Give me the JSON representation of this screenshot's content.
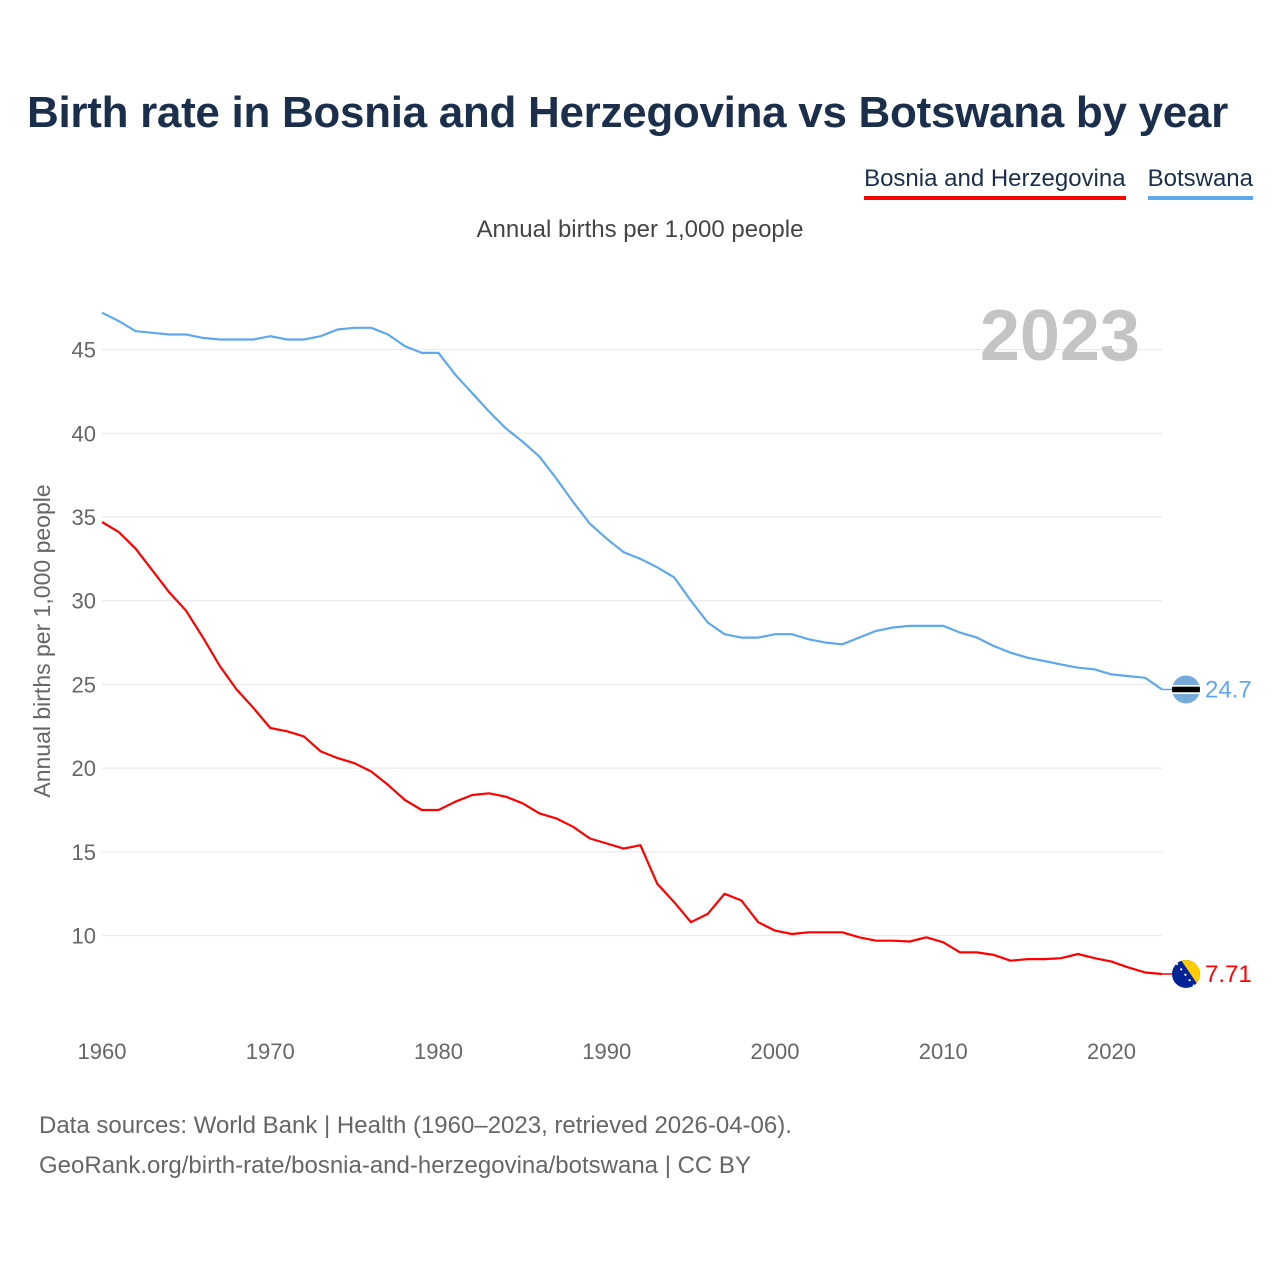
{
  "title": "Birth rate in Bosnia and Herzegovina vs Botswana by year",
  "subtitle": "Annual births per 1,000 people",
  "legend": [
    {
      "label": "Bosnia and Herzegovina",
      "color": "#ff0000"
    },
    {
      "label": "Botswana",
      "color": "#5ea8ec"
    }
  ],
  "year_label": "2023",
  "source": {
    "line1": "Data sources: World Bank | Health (1960–2023, retrieved 2026-04-06).",
    "line2": "GeoRank.org/birth-rate/bosnia-and-herzegovina/botswana | CC BY"
  },
  "chart_data": {
    "type": "line",
    "title": "Birth rate in Bosnia and Herzegovina vs Botswana by year",
    "xlabel": "",
    "ylabel": "Annual births per 1,000 people",
    "xlim": [
      1960,
      2023
    ],
    "ylim": [
      5.2,
      48.2
    ],
    "xticks": [
      1960,
      1970,
      1980,
      1990,
      2000,
      2010,
      2020
    ],
    "yticks": [
      10,
      15,
      20,
      25,
      30,
      35,
      40,
      45
    ],
    "grid": true,
    "x": [
      1960,
      1961,
      1962,
      1963,
      1964,
      1965,
      1966,
      1967,
      1968,
      1969,
      1970,
      1971,
      1972,
      1973,
      1974,
      1975,
      1976,
      1977,
      1978,
      1979,
      1980,
      1981,
      1982,
      1983,
      1984,
      1985,
      1986,
      1987,
      1988,
      1989,
      1990,
      1991,
      1992,
      1993,
      1994,
      1995,
      1996,
      1997,
      1998,
      1999,
      2000,
      2001,
      2002,
      2003,
      2004,
      2005,
      2006,
      2007,
      2008,
      2009,
      2010,
      2011,
      2012,
      2013,
      2014,
      2015,
      2016,
      2017,
      2018,
      2019,
      2020,
      2021,
      2022,
      2023
    ],
    "series": [
      {
        "name": "Bosnia and Herzegovina",
        "color": "#ff0000",
        "end_value": "7.71",
        "flag": "bosnia-flag",
        "values": [
          34.7,
          34.1,
          33.1,
          31.8,
          30.5,
          29.4,
          27.8,
          26.1,
          24.7,
          23.6,
          22.4,
          22.2,
          21.9,
          21.0,
          20.6,
          20.3,
          19.8,
          19.0,
          18.1,
          17.5,
          17.5,
          18.0,
          18.4,
          18.5,
          18.3,
          17.9,
          17.3,
          17.0,
          16.5,
          15.8,
          15.5,
          15.2,
          15.4,
          13.1,
          12.0,
          10.8,
          11.3,
          12.5,
          12.1,
          10.8,
          10.3,
          10.1,
          10.2,
          10.2,
          10.2,
          9.9,
          9.7,
          9.7,
          9.65,
          9.9,
          9.6,
          9.0,
          9.0,
          8.85,
          8.5,
          8.6,
          8.6,
          8.65,
          8.9,
          8.65,
          8.45,
          8.1,
          7.8,
          7.71
        ]
      },
      {
        "name": "Botswana",
        "color": "#5ea8ec",
        "end_value": "24.7",
        "flag": "botswana-flag",
        "values": [
          47.2,
          46.7,
          46.1,
          46.0,
          45.9,
          45.9,
          45.7,
          45.6,
          45.6,
          45.6,
          45.8,
          45.6,
          45.6,
          45.8,
          46.2,
          46.3,
          46.3,
          45.9,
          45.2,
          44.8,
          44.8,
          43.5,
          42.4,
          41.3,
          40.3,
          39.5,
          38.6,
          37.3,
          35.9,
          34.6,
          33.7,
          32.9,
          32.5,
          32.0,
          31.4,
          30.0,
          28.7,
          28.0,
          27.8,
          27.8,
          28.0,
          28.0,
          27.7,
          27.5,
          27.4,
          27.8,
          28.2,
          28.4,
          28.5,
          28.5,
          28.5,
          28.1,
          27.8,
          27.3,
          26.9,
          26.6,
          26.4,
          26.2,
          26.0,
          25.9,
          25.6,
          25.5,
          25.4,
          24.7
        ]
      }
    ]
  }
}
